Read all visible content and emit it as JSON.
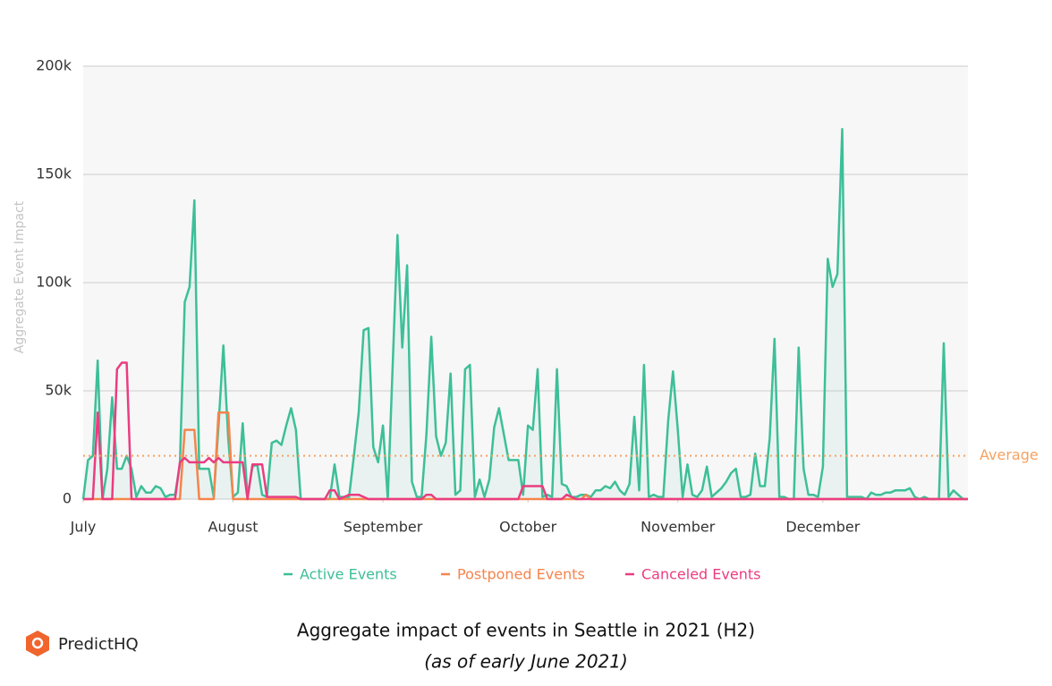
{
  "chart_data": {
    "type": "line",
    "title": "Aggregate impact of events in Seattle in 2021 (H2)",
    "subtitle": "(as of early June 2021)",
    "ylabel": "Aggregate Event Impact",
    "brand": "PredictHQ",
    "average": 20000,
    "average_label": "Average",
    "average_color": "#f5a262",
    "xlim": [
      0,
      183
    ],
    "xticks": [
      {
        "value": 0,
        "label": "July"
      },
      {
        "value": 31,
        "label": "August"
      },
      {
        "value": 62,
        "label": "September"
      },
      {
        "value": 92,
        "label": "October"
      },
      {
        "value": 123,
        "label": "November"
      },
      {
        "value": 153,
        "label": "December"
      }
    ],
    "ylim": [
      0,
      200000
    ],
    "yticks": [
      0,
      {
        "value": 50000,
        "label": "50k"
      },
      {
        "value": 100000,
        "label": "100k"
      },
      {
        "value": 150000,
        "label": "150k"
      },
      {
        "value": 200000,
        "label": "200k"
      }
    ],
    "grid": true,
    "legend": "bottom",
    "series": [
      {
        "name": "Active Events",
        "color": "#3dbf98",
        "fill": true,
        "x": [
          0,
          1,
          2,
          3,
          4,
          5,
          6,
          7,
          8,
          9,
          10,
          11,
          12,
          13,
          14,
          15,
          16,
          17,
          18,
          19,
          20,
          21,
          22,
          23,
          24,
          25,
          26,
          27,
          28,
          29,
          30,
          31,
          32,
          33,
          34,
          35,
          36,
          37,
          38,
          39,
          40,
          41,
          42,
          43,
          44,
          45,
          46,
          47,
          48,
          49,
          50,
          51,
          52,
          53,
          54,
          55,
          56,
          57,
          58,
          59,
          60,
          61,
          62,
          63,
          64,
          65,
          66,
          67,
          68,
          69,
          70,
          71,
          72,
          73,
          74,
          75,
          76,
          77,
          78,
          79,
          80,
          81,
          82,
          83,
          84,
          85,
          86,
          87,
          88,
          89,
          90,
          91,
          92,
          93,
          94,
          95,
          96,
          97,
          98,
          99,
          100,
          101,
          102,
          103,
          104,
          105,
          106,
          107,
          108,
          109,
          110,
          111,
          112,
          113,
          114,
          115,
          116,
          117,
          118,
          119,
          120,
          121,
          122,
          123,
          124,
          125,
          126,
          127,
          128,
          129,
          130,
          131,
          132,
          133,
          134,
          135,
          136,
          137,
          138,
          139,
          140,
          141,
          142,
          143,
          144,
          145,
          146,
          147,
          148,
          149,
          150,
          151,
          152,
          153,
          154,
          155,
          156,
          157,
          158,
          159,
          160,
          161,
          162,
          163,
          164,
          165,
          166,
          167,
          168,
          169,
          170,
          171,
          172,
          173,
          174,
          175,
          176,
          177,
          178,
          179,
          180,
          181,
          182,
          183
        ],
        "values": [
          0,
          18000,
          20000,
          64000,
          0,
          14000,
          47000,
          14000,
          14000,
          20000,
          14000,
          1000,
          6000,
          3000,
          3000,
          6000,
          5000,
          1000,
          2000,
          2000,
          16000,
          91000,
          98000,
          138000,
          14000,
          14000,
          14000,
          1000,
          34000,
          71000,
          28000,
          1000,
          3000,
          35000,
          1000,
          15000,
          16000,
          2000,
          1000,
          26000,
          27000,
          25000,
          34000,
          42000,
          32000,
          0,
          0,
          0,
          0,
          0,
          0,
          0,
          16000,
          1000,
          1000,
          1000,
          20000,
          40000,
          78000,
          79000,
          24000,
          17000,
          34000,
          0,
          61000,
          122000,
          70000,
          108000,
          8000,
          1000,
          1000,
          30000,
          75000,
          29000,
          20000,
          26000,
          58000,
          2000,
          4000,
          60000,
          62000,
          1000,
          9000,
          1000,
          9000,
          33000,
          42000,
          30000,
          18000,
          18000,
          18000,
          2000,
          34000,
          32000,
          60000,
          1000,
          2000,
          1000,
          60000,
          7000,
          6000,
          1000,
          1000,
          2000,
          2000,
          1000,
          4000,
          4000,
          6000,
          5000,
          8000,
          4000,
          2000,
          7000,
          38000,
          4000,
          62000,
          1000,
          2000,
          1000,
          1000,
          36000,
          59000,
          32000,
          1000,
          16000,
          2000,
          1000,
          4000,
          15000,
          1000,
          3000,
          5000,
          8000,
          12000,
          14000,
          1000,
          1000,
          2000,
          21000,
          6000,
          6000,
          28000,
          74000,
          1000,
          1000,
          0,
          0,
          70000,
          14000,
          2000,
          2000,
          1000,
          15000,
          111000,
          98000,
          104000,
          171000,
          1000,
          1000,
          1000,
          1000,
          0,
          3000,
          2000,
          2000,
          3000,
          3000,
          4000,
          4000,
          4000,
          5000,
          1000,
          0,
          1000,
          0,
          0,
          0,
          72000,
          1000,
          4000,
          2000,
          0,
          0
        ]
      },
      {
        "name": "Postponed Events",
        "color": "#f5844c",
        "x": [
          0,
          20,
          21,
          23,
          24,
          27,
          28,
          30,
          31,
          103,
          104,
          105,
          183
        ],
        "values": [
          0,
          0,
          32000,
          32000,
          0,
          0,
          40000,
          40000,
          0,
          0,
          2000,
          0,
          0
        ]
      },
      {
        "name": "Canceled Events",
        "color": "#ea3d80",
        "x": [
          0,
          2,
          3,
          4,
          6,
          7,
          8,
          9,
          10,
          19,
          20,
          21,
          22,
          25,
          26,
          27,
          28,
          29,
          33,
          34,
          35,
          37,
          38,
          44,
          45,
          50,
          51,
          52,
          53,
          54,
          55,
          57,
          58,
          59,
          70,
          71,
          72,
          73,
          90,
          91,
          95,
          96,
          99,
          100,
          101,
          102,
          183
        ],
        "values": [
          0,
          0,
          40000,
          0,
          0,
          60000,
          63000,
          63000,
          0,
          0,
          17000,
          19000,
          17000,
          17000,
          19000,
          17000,
          19000,
          17000,
          17000,
          0,
          16000,
          16000,
          1000,
          1000,
          0,
          0,
          4000,
          4000,
          0,
          1000,
          2000,
          2000,
          1000,
          0,
          0,
          2000,
          2000,
          0,
          0,
          6000,
          6000,
          0,
          0,
          2000,
          1000,
          0,
          0
        ]
      }
    ]
  }
}
